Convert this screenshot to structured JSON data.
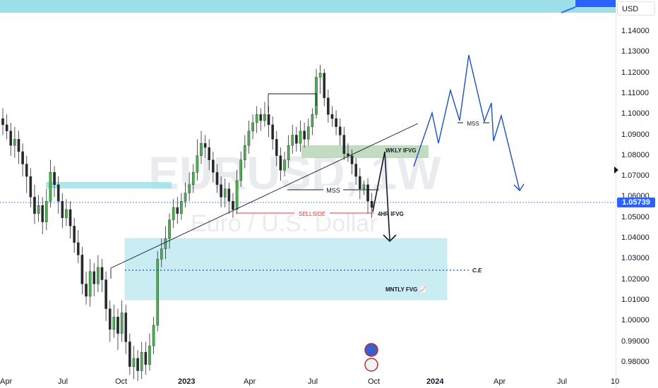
{
  "watermark": {
    "ticker": "EURUSD, 1W",
    "name": "Euro / U.S. Dollar"
  },
  "currency": "USD",
  "last_price": {
    "value": 1.05739,
    "label": "1.05739"
  },
  "colors": {
    "up_candle": "#4caf50",
    "down_candle": "#26292e",
    "fvg_zone": "#9ddfe9",
    "wkly_zone": "#8fbf90",
    "projection": "#1c4fc0",
    "sellside": "#e53935",
    "price_tag": "#2962ff"
  },
  "annotations": {
    "wkly_ifvg": "WKLY IFVG",
    "mss_1": "MSS",
    "mss_2": "MSS",
    "sellside": "SELLSIDE",
    "h4_ifvg": "4HR IFVG",
    "mntly_fvg": "MNTLY FVG 📈",
    "ce": "C.E"
  },
  "chart_data": {
    "type": "candlestick",
    "title": "EURUSD, 1W",
    "subtitle": "Euro / U.S. Dollar",
    "ylim": [
      0.975,
      1.152
    ],
    "y_ticks": [
      0.98,
      0.99,
      1.0,
      1.01,
      1.02,
      1.03,
      1.04,
      1.05,
      1.06,
      1.07,
      1.08,
      1.09,
      1.1,
      1.11,
      1.12,
      1.13,
      1.14
    ],
    "y_tick_labels": [
      "0.98000",
      "0.99000",
      "1.00000",
      "1.01000",
      "1.02000",
      "1.03000",
      "1.04000",
      "1.05000",
      "1.06000",
      "1.07000",
      "1.08000",
      "1.09000",
      "1.10000",
      "1.11000",
      "1.12000",
      "1.13000",
      "1.14000"
    ],
    "x_labels": [
      {
        "label": "Apr",
        "bold": false
      },
      {
        "label": "Jul",
        "bold": false
      },
      {
        "label": "Oct",
        "bold": false
      },
      {
        "label": "2023",
        "bold": true
      },
      {
        "label": "Apr",
        "bold": false
      },
      {
        "label": "Jul",
        "bold": false
      },
      {
        "label": "Oct",
        "bold": false
      },
      {
        "label": "2024",
        "bold": true
      },
      {
        "label": "Apr",
        "bold": false
      },
      {
        "label": "Jul",
        "bold": false
      },
      {
        "label": "10",
        "bold": false
      }
    ],
    "candles": [
      [
        1.098,
        1.095,
        1.103,
        1.09
      ],
      [
        1.095,
        1.092,
        1.1,
        1.088
      ],
      [
        1.092,
        1.085,
        1.096,
        1.08
      ],
      [
        1.085,
        1.088,
        1.094,
        1.079
      ],
      [
        1.088,
        1.082,
        1.092,
        1.076
      ],
      [
        1.082,
        1.076,
        1.086,
        1.07
      ],
      [
        1.076,
        1.07,
        1.08,
        1.062
      ],
      [
        1.07,
        1.06,
        1.074,
        1.055
      ],
      [
        1.06,
        1.052,
        1.066,
        1.047
      ],
      [
        1.052,
        1.056,
        1.061,
        1.048
      ],
      [
        1.056,
        1.048,
        1.06,
        1.042
      ],
      [
        1.048,
        1.058,
        1.064,
        1.044
      ],
      [
        1.058,
        1.072,
        1.078,
        1.055
      ],
      [
        1.072,
        1.066,
        1.075,
        1.06
      ],
      [
        1.066,
        1.058,
        1.07,
        1.052
      ],
      [
        1.058,
        1.05,
        1.062,
        1.045
      ],
      [
        1.05,
        1.054,
        1.059,
        1.046
      ],
      [
        1.054,
        1.046,
        1.058,
        1.04
      ],
      [
        1.046,
        1.038,
        1.05,
        1.033
      ],
      [
        1.038,
        1.032,
        1.044,
        1.028
      ],
      [
        1.032,
        1.018,
        1.036,
        1.013
      ],
      [
        1.018,
        1.012,
        1.024,
        1.008
      ],
      [
        1.012,
        1.024,
        1.03,
        1.007
      ],
      [
        1.024,
        1.018,
        1.028,
        1.012
      ],
      [
        1.018,
        1.026,
        1.032,
        1.014
      ],
      [
        1.026,
        1.02,
        1.03,
        1.014
      ],
      [
        1.02,
        1.006,
        1.024,
        1.0
      ],
      [
        1.006,
        0.996,
        1.01,
        0.99
      ],
      [
        0.996,
        1.002,
        1.008,
        0.992
      ],
      [
        1.002,
        0.994,
        1.006,
        0.986
      ],
      [
        0.994,
        1.004,
        1.01,
        0.99
      ],
      [
        1.004,
        0.99,
        1.008,
        0.984
      ],
      [
        0.99,
        0.978,
        0.994,
        0.974
      ],
      [
        0.978,
        0.982,
        0.988,
        0.972
      ],
      [
        0.982,
        0.976,
        0.986,
        0.971
      ],
      [
        0.976,
        0.985,
        0.99,
        0.972
      ],
      [
        0.985,
        0.979,
        0.99,
        0.974
      ],
      [
        0.979,
        0.988,
        0.994,
        0.976
      ],
      [
        0.988,
        0.998,
        1.002,
        0.984
      ],
      [
        0.998,
        1.03,
        1.034,
        0.995
      ],
      [
        1.03,
        1.035,
        1.04,
        1.026
      ],
      [
        1.035,
        1.04,
        1.046,
        1.03
      ],
      [
        1.04,
        1.049,
        1.052,
        1.035
      ],
      [
        1.049,
        1.055,
        1.059,
        1.045
      ],
      [
        1.055,
        1.052,
        1.06,
        1.047
      ],
      [
        1.052,
        1.058,
        1.062,
        1.049
      ],
      [
        1.058,
        1.062,
        1.067,
        1.055
      ],
      [
        1.062,
        1.066,
        1.072,
        1.058
      ],
      [
        1.066,
        1.072,
        1.076,
        1.062
      ],
      [
        1.072,
        1.08,
        1.088,
        1.068
      ],
      [
        1.08,
        1.086,
        1.092,
        1.076
      ],
      [
        1.086,
        1.084,
        1.09,
        1.079
      ],
      [
        1.084,
        1.078,
        1.088,
        1.073
      ],
      [
        1.078,
        1.072,
        1.082,
        1.067
      ],
      [
        1.072,
        1.066,
        1.076,
        1.062
      ],
      [
        1.066,
        1.06,
        1.07,
        1.055
      ],
      [
        1.06,
        1.064,
        1.069,
        1.055
      ],
      [
        1.064,
        1.058,
        1.067,
        1.052
      ],
      [
        1.058,
        1.054,
        1.062,
        1.05
      ],
      [
        1.054,
        1.068,
        1.073,
        1.052
      ],
      [
        1.068,
        1.078,
        1.082,
        1.065
      ],
      [
        1.078,
        1.085,
        1.09,
        1.074
      ],
      [
        1.085,
        1.092,
        1.097,
        1.081
      ],
      [
        1.092,
        1.096,
        1.1,
        1.088
      ],
      [
        1.096,
        1.1,
        1.104,
        1.091
      ],
      [
        1.1,
        1.097,
        1.103,
        1.092
      ],
      [
        1.097,
        1.1,
        1.106,
        1.094
      ],
      [
        1.1,
        1.095,
        1.104,
        1.089
      ],
      [
        1.095,
        1.088,
        1.099,
        1.083
      ],
      [
        1.088,
        1.08,
        1.092,
        1.075
      ],
      [
        1.08,
        1.073,
        1.084,
        1.068
      ],
      [
        1.073,
        1.078,
        1.082,
        1.07
      ],
      [
        1.078,
        1.085,
        1.09,
        1.074
      ],
      [
        1.085,
        1.09,
        1.095,
        1.081
      ],
      [
        1.09,
        1.086,
        1.094,
        1.082
      ],
      [
        1.086,
        1.092,
        1.097,
        1.082
      ],
      [
        1.092,
        1.088,
        1.096,
        1.084
      ],
      [
        1.088,
        1.094,
        1.098,
        1.085
      ],
      [
        1.094,
        1.1,
        1.103,
        1.09
      ],
      [
        1.1,
        1.118,
        1.122,
        1.098
      ],
      [
        1.118,
        1.12,
        1.124,
        1.11
      ],
      [
        1.12,
        1.108,
        1.122,
        1.104
      ],
      [
        1.108,
        1.1,
        1.112,
        1.096
      ],
      [
        1.1,
        1.098,
        1.104,
        1.094
      ],
      [
        1.098,
        1.094,
        1.102,
        1.09
      ],
      [
        1.094,
        1.09,
        1.098,
        1.085
      ],
      [
        1.09,
        1.081,
        1.094,
        1.078
      ],
      [
        1.081,
        1.08,
        1.086,
        1.077
      ],
      [
        1.08,
        1.076,
        1.083,
        1.071
      ],
      [
        1.076,
        1.07,
        1.079,
        1.066
      ],
      [
        1.07,
        1.064,
        1.074,
        1.059
      ],
      [
        1.064,
        1.066,
        1.068,
        1.061
      ],
      [
        1.066,
        1.058,
        1.069,
        1.052
      ],
      [
        1.058,
        1.055,
        1.062,
        1.05
      ]
    ]
  }
}
